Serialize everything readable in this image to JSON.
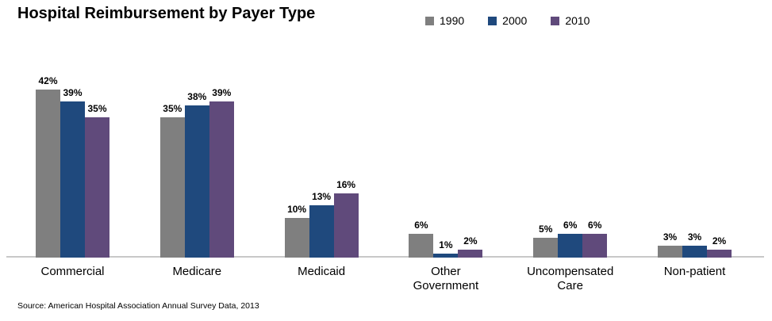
{
  "chart_data": {
    "type": "bar",
    "title": "Hospital Reimbursement by Payer Type",
    "categories": [
      "Commercial",
      "Medicare",
      "Medicaid",
      "Other\nGovernment",
      "Uncompensated\nCare",
      "Non-patient"
    ],
    "series": [
      {
        "name": "1990",
        "color": "#7F7F7F",
        "values": [
          42,
          35,
          10,
          6,
          5,
          3
        ],
        "labels": [
          "42%",
          "35%",
          "10%",
          "6%",
          "5%",
          "3%"
        ]
      },
      {
        "name": "2000",
        "color": "#1F497D",
        "values": [
          39,
          38,
          13,
          1,
          6,
          3
        ],
        "labels": [
          "39%",
          "38%",
          "13%",
          "1%",
          "6%",
          "3%"
        ]
      },
      {
        "name": "2010",
        "color": "#604A7B",
        "values": [
          35,
          39,
          16,
          2,
          6,
          2
        ],
        "labels": [
          "35%",
          "39%",
          "16%",
          "2%",
          "6%",
          "2%"
        ]
      }
    ],
    "ylim": [
      0,
      45
    ],
    "value_suffix": "%",
    "grid": false,
    "legend_position": "top-center",
    "axis_line_color": "#C8C8C8",
    "source": "Source: American Hospital Association Annual Survey Data, 2013"
  }
}
